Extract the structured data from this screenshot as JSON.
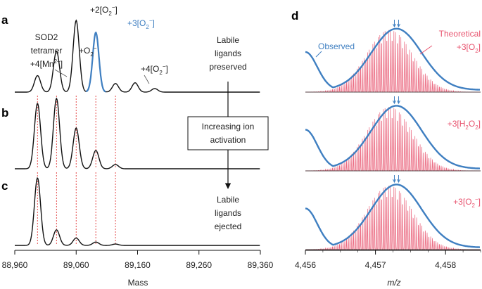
{
  "figure": {
    "panel_labels": [
      "a",
      "b",
      "c",
      "d"
    ],
    "colors": {
      "black_trace": "#111111",
      "blue": "#3f7fc1",
      "theory": "#e8546f",
      "guide": "#e03a3a",
      "sub_ion": "#e8546f",
      "bg": "#ffffff"
    }
  },
  "chart_data": [
    {
      "type": "line",
      "panel": "a",
      "xlabel": "Mass",
      "xlim": [
        88960,
        89360
      ],
      "xticks": [
        88960,
        89060,
        89160,
        89260,
        89360
      ],
      "xtick_labels": [
        "88,960",
        "89,060",
        "89,160",
        "89,260",
        "89,360"
      ],
      "peaks": [
        {
          "mass": 88997,
          "intensity": 0.23
        },
        {
          "mass": 89028,
          "intensity": 0.57
        },
        {
          "mass": 89060,
          "intensity": 1.0
        },
        {
          "mass": 89092,
          "intensity": 0.83,
          "highlight": true
        },
        {
          "mass": 89124,
          "intensity": 0.12
        },
        {
          "mass": 89156,
          "intensity": 0.13
        },
        {
          "mass": 89188,
          "intensity": 0.05
        }
      ],
      "annotations": {
        "sod2": [
          "SOD2",
          "tetramer",
          "+4[Mn2+]"
        ],
        "o2": "+O2−",
        "two_o2": "+2[O2−]",
        "three_o2": "+3[O2−]",
        "four_o2": "+4[O2−]",
        "labile_top": [
          "Labile",
          "ligands",
          "preserved"
        ]
      }
    },
    {
      "type": "line",
      "panel": "b",
      "xlim": [
        88960,
        89360
      ],
      "peaks": [
        {
          "mass": 88997,
          "intensity": 0.93
        },
        {
          "mass": 89028,
          "intensity": 1.0
        },
        {
          "mass": 89060,
          "intensity": 0.58
        },
        {
          "mass": 89092,
          "intensity": 0.26
        },
        {
          "mass": 89124,
          "intensity": 0.06
        }
      ],
      "annotations": {
        "activation_box": [
          "Increasing ion",
          "activation"
        ]
      }
    },
    {
      "type": "line",
      "panel": "c",
      "xlim": [
        88960,
        89360
      ],
      "peaks": [
        {
          "mass": 88997,
          "intensity": 1.0
        },
        {
          "mass": 89028,
          "intensity": 0.23
        },
        {
          "mass": 89060,
          "intensity": 0.11
        },
        {
          "mass": 89092,
          "intensity": 0.05
        },
        {
          "mass": 89124,
          "intensity": 0.02
        }
      ],
      "annotations": {
        "labile_bottom": [
          "Labile",
          "ligands",
          "ejected"
        ]
      }
    },
    {
      "type": "line",
      "panel": "d",
      "xlabel": "m/z",
      "xlim": [
        4456,
        4458.5
      ],
      "xticks": [
        4456,
        4457,
        4458
      ],
      "xtick_labels": [
        "4,456",
        "4,457",
        "4,458"
      ],
      "observed_apex": 4457.3,
      "theoretical_center": 4457.2,
      "theoretical_spacing": 0.025,
      "series": [
        {
          "name": "Observed",
          "label": "Observed",
          "ion": "+3[O2−]",
          "sub": "2"
        },
        {
          "name": "Theoretical",
          "label": "Theoretical",
          "ion": "+3[H2O2]",
          "sub": "2"
        },
        {
          "name": "Theoretical",
          "label": "Theoretical",
          "ion": "+3[O2−]",
          "sub": "2"
        }
      ],
      "annotations": {
        "observed": "Observed",
        "theoretical": "Theoretical",
        "ion_top": "+3[O2]",
        "ion_mid": "+3[H2O2]",
        "ion_bottom": "+3[O2−]"
      }
    }
  ]
}
